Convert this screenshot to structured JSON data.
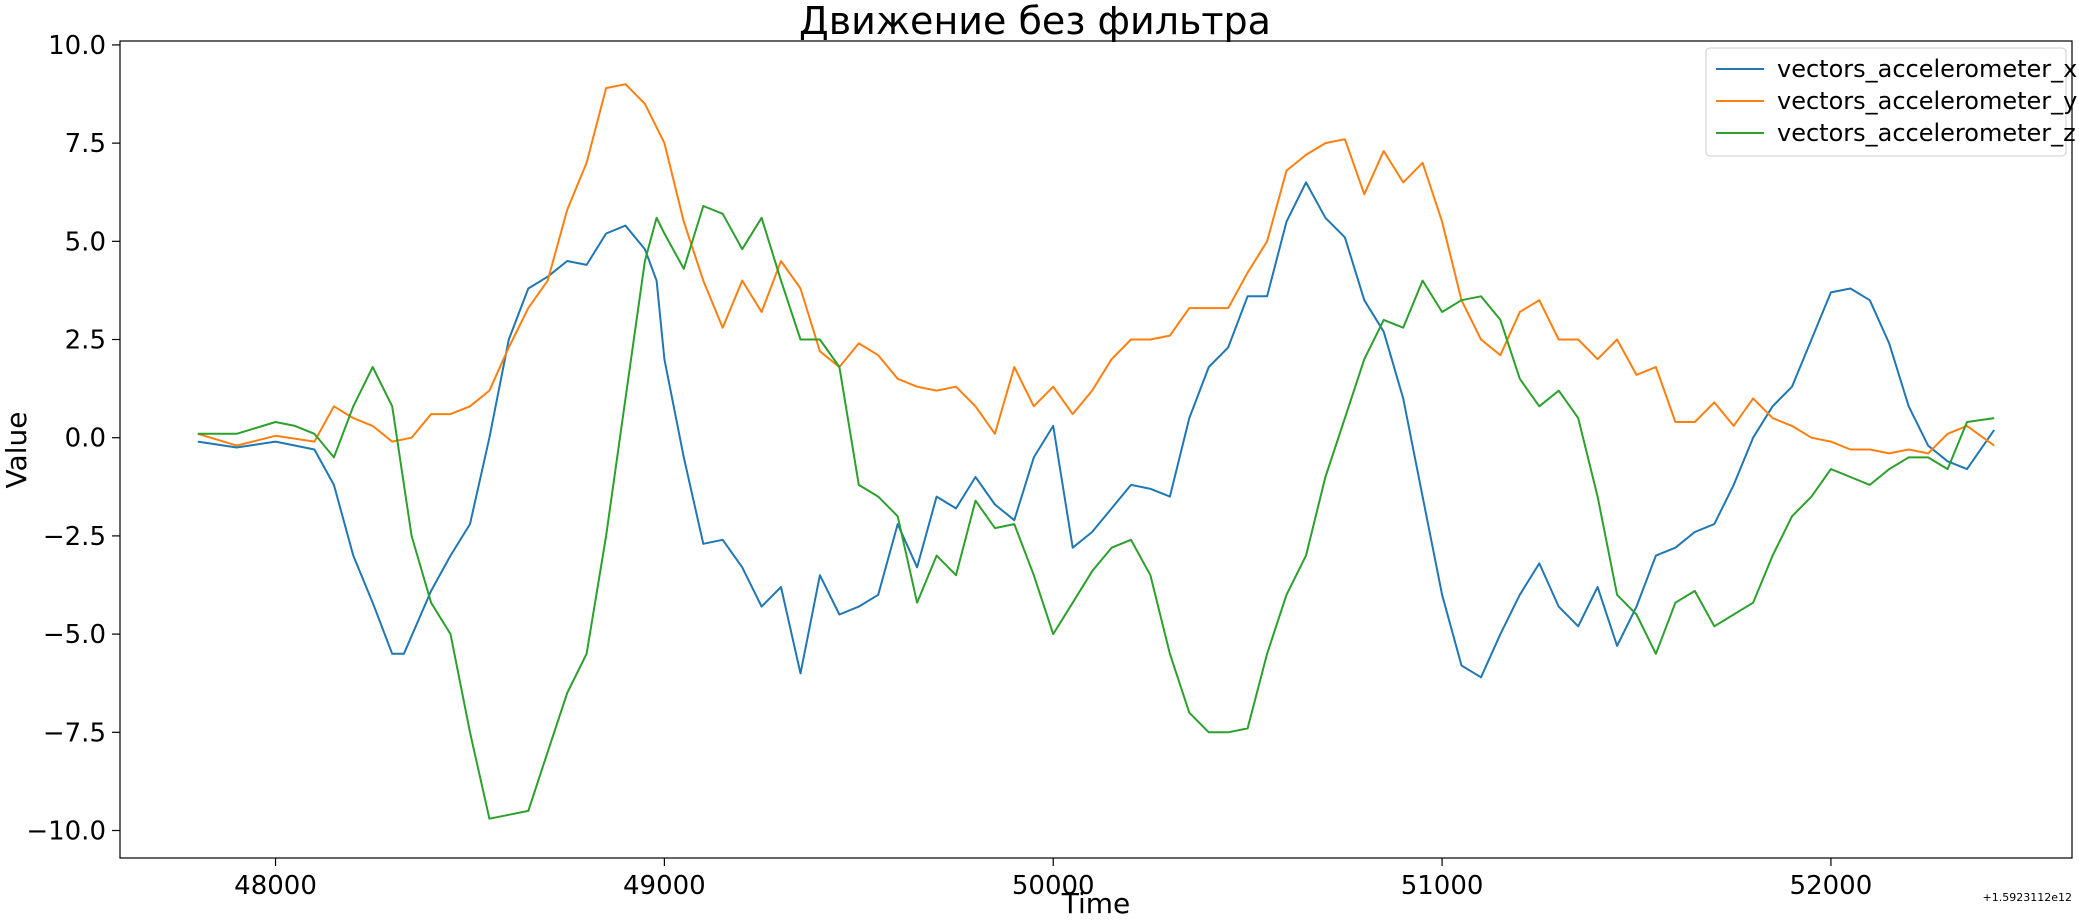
{
  "chart_data": {
    "type": "line",
    "title": "Движение без фильтра",
    "xlabel": "Time",
    "ylabel": "Value",
    "x_offset_label": "+1.5923112e12",
    "xlim": [
      47600,
      52620
    ],
    "ylim": [
      -10.7,
      10.1
    ],
    "xticks": [
      48000,
      49000,
      50000,
      51000,
      52000
    ],
    "yticks": [
      -10.0,
      -7.5,
      -5.0,
      -2.5,
      0.0,
      2.5,
      5.0,
      7.5,
      10.0
    ],
    "xtick_labels": [
      "48000",
      "49000",
      "50000",
      "51000",
      "52000"
    ],
    "ytick_labels": [
      "−10.0",
      "−7.5",
      "−5.0",
      "−2.5",
      "0.0",
      "2.5",
      "5.0",
      "7.5",
      "10.0"
    ],
    "grid": false,
    "legend_position": "top-right",
    "series": [
      {
        "name": "vectors_accelerometer_x",
        "color": "#1f77b4",
        "points": [
          [
            47800,
            -0.1
          ],
          [
            47900,
            -0.25
          ],
          [
            48000,
            -0.1
          ],
          [
            48100,
            -0.3
          ],
          [
            48150,
            -1.2
          ],
          [
            48200,
            -3.0
          ],
          [
            48250,
            -4.2
          ],
          [
            48300,
            -5.5
          ],
          [
            48330,
            -5.5
          ],
          [
            48400,
            -3.9
          ],
          [
            48450,
            -3.0
          ],
          [
            48500,
            -2.2
          ],
          [
            48550,
            0.0
          ],
          [
            48600,
            2.5
          ],
          [
            48650,
            3.8
          ],
          [
            48700,
            4.1
          ],
          [
            48750,
            4.5
          ],
          [
            48800,
            4.4
          ],
          [
            48850,
            5.2
          ],
          [
            48900,
            5.4
          ],
          [
            48950,
            4.8
          ],
          [
            48980,
            4.0
          ],
          [
            49000,
            2.0
          ],
          [
            49050,
            -0.5
          ],
          [
            49100,
            -2.7
          ],
          [
            49150,
            -2.6
          ],
          [
            49200,
            -3.3
          ],
          [
            49250,
            -4.3
          ],
          [
            49300,
            -3.8
          ],
          [
            49350,
            -6.0
          ],
          [
            49400,
            -3.5
          ],
          [
            49450,
            -4.5
          ],
          [
            49500,
            -4.3
          ],
          [
            49550,
            -4.0
          ],
          [
            49600,
            -2.2
          ],
          [
            49650,
            -3.3
          ],
          [
            49700,
            -1.5
          ],
          [
            49750,
            -1.8
          ],
          [
            49800,
            -1.0
          ],
          [
            49850,
            -1.7
          ],
          [
            49900,
            -2.1
          ],
          [
            49950,
            -0.5
          ],
          [
            50000,
            0.3
          ],
          [
            50050,
            -2.8
          ],
          [
            50100,
            -2.4
          ],
          [
            50150,
            -1.8
          ],
          [
            50200,
            -1.2
          ],
          [
            50250,
            -1.3
          ],
          [
            50300,
            -1.5
          ],
          [
            50350,
            0.5
          ],
          [
            50400,
            1.8
          ],
          [
            50450,
            2.3
          ],
          [
            50500,
            3.6
          ],
          [
            50550,
            3.6
          ],
          [
            50600,
            5.5
          ],
          [
            50650,
            6.5
          ],
          [
            50700,
            5.6
          ],
          [
            50750,
            5.1
          ],
          [
            50800,
            3.5
          ],
          [
            50850,
            2.7
          ],
          [
            50900,
            1.0
          ],
          [
            50950,
            -1.5
          ],
          [
            51000,
            -4.0
          ],
          [
            51050,
            -5.8
          ],
          [
            51100,
            -6.1
          ],
          [
            51150,
            -5.0
          ],
          [
            51200,
            -4.0
          ],
          [
            51250,
            -3.2
          ],
          [
            51300,
            -4.3
          ],
          [
            51350,
            -4.8
          ],
          [
            51400,
            -3.8
          ],
          [
            51450,
            -5.3
          ],
          [
            51500,
            -4.3
          ],
          [
            51550,
            -3.0
          ],
          [
            51600,
            -2.8
          ],
          [
            51650,
            -2.4
          ],
          [
            51700,
            -2.2
          ],
          [
            51750,
            -1.2
          ],
          [
            51800,
            0.0
          ],
          [
            51850,
            0.8
          ],
          [
            51900,
            1.3
          ],
          [
            51950,
            2.5
          ],
          [
            52000,
            3.7
          ],
          [
            52050,
            3.8
          ],
          [
            52100,
            3.5
          ],
          [
            52150,
            2.4
          ],
          [
            52200,
            0.8
          ],
          [
            52250,
            -0.2
          ],
          [
            52300,
            -0.6
          ],
          [
            52350,
            -0.8
          ],
          [
            52420,
            0.2
          ]
        ]
      },
      {
        "name": "vectors_accelerometer_y",
        "color": "#ff7f0e",
        "points": [
          [
            47800,
            0.1
          ],
          [
            47900,
            -0.2
          ],
          [
            48000,
            0.05
          ],
          [
            48100,
            -0.1
          ],
          [
            48150,
            0.8
          ],
          [
            48200,
            0.5
          ],
          [
            48250,
            0.3
          ],
          [
            48300,
            -0.1
          ],
          [
            48350,
            0.0
          ],
          [
            48400,
            0.6
          ],
          [
            48450,
            0.6
          ],
          [
            48500,
            0.8
          ],
          [
            48550,
            1.2
          ],
          [
            48600,
            2.3
          ],
          [
            48650,
            3.3
          ],
          [
            48700,
            4.0
          ],
          [
            48750,
            5.8
          ],
          [
            48800,
            7.0
          ],
          [
            48850,
            8.9
          ],
          [
            48900,
            9.0
          ],
          [
            48950,
            8.5
          ],
          [
            49000,
            7.5
          ],
          [
            49050,
            5.5
          ],
          [
            49100,
            4.0
          ],
          [
            49150,
            2.8
          ],
          [
            49200,
            4.0
          ],
          [
            49250,
            3.2
          ],
          [
            49300,
            4.5
          ],
          [
            49350,
            3.8
          ],
          [
            49400,
            2.2
          ],
          [
            49450,
            1.8
          ],
          [
            49500,
            2.4
          ],
          [
            49550,
            2.1
          ],
          [
            49600,
            1.5
          ],
          [
            49650,
            1.3
          ],
          [
            49700,
            1.2
          ],
          [
            49750,
            1.3
          ],
          [
            49800,
            0.8
          ],
          [
            49850,
            0.1
          ],
          [
            49900,
            1.8
          ],
          [
            49950,
            0.8
          ],
          [
            50000,
            1.3
          ],
          [
            50050,
            0.6
          ],
          [
            50100,
            1.2
          ],
          [
            50150,
            2.0
          ],
          [
            50200,
            2.5
          ],
          [
            50250,
            2.5
          ],
          [
            50300,
            2.6
          ],
          [
            50350,
            3.3
          ],
          [
            50400,
            3.3
          ],
          [
            50450,
            3.3
          ],
          [
            50500,
            4.2
          ],
          [
            50550,
            5.0
          ],
          [
            50600,
            6.8
          ],
          [
            50650,
            7.2
          ],
          [
            50700,
            7.5
          ],
          [
            50750,
            7.6
          ],
          [
            50800,
            6.2
          ],
          [
            50850,
            7.3
          ],
          [
            50900,
            6.5
          ],
          [
            50950,
            7.0
          ],
          [
            51000,
            5.5
          ],
          [
            51050,
            3.5
          ],
          [
            51100,
            2.5
          ],
          [
            51150,
            2.1
          ],
          [
            51200,
            3.2
          ],
          [
            51250,
            3.5
          ],
          [
            51300,
            2.5
          ],
          [
            51350,
            2.5
          ],
          [
            51400,
            2.0
          ],
          [
            51450,
            2.5
          ],
          [
            51500,
            1.6
          ],
          [
            51550,
            1.8
          ],
          [
            51600,
            0.4
          ],
          [
            51650,
            0.4
          ],
          [
            51700,
            0.9
          ],
          [
            51750,
            0.3
          ],
          [
            51800,
            1.0
          ],
          [
            51850,
            0.5
          ],
          [
            51900,
            0.3
          ],
          [
            51950,
            0.0
          ],
          [
            52000,
            -0.1
          ],
          [
            52050,
            -0.3
          ],
          [
            52100,
            -0.3
          ],
          [
            52150,
            -0.4
          ],
          [
            52200,
            -0.3
          ],
          [
            52250,
            -0.4
          ],
          [
            52300,
            0.1
          ],
          [
            52350,
            0.3
          ],
          [
            52420,
            -0.2
          ]
        ]
      },
      {
        "name": "vectors_accelerometer_z",
        "color": "#2ca02c",
        "points": [
          [
            47800,
            0.1
          ],
          [
            47900,
            0.1
          ],
          [
            48000,
            0.4
          ],
          [
            48050,
            0.3
          ],
          [
            48100,
            0.1
          ],
          [
            48150,
            -0.5
          ],
          [
            48200,
            0.8
          ],
          [
            48250,
            1.8
          ],
          [
            48300,
            0.8
          ],
          [
            48350,
            -2.5
          ],
          [
            48400,
            -4.2
          ],
          [
            48450,
            -5.0
          ],
          [
            48500,
            -7.5
          ],
          [
            48550,
            -9.7
          ],
          [
            48600,
            -9.6
          ],
          [
            48650,
            -9.5
          ],
          [
            48700,
            -8.0
          ],
          [
            48750,
            -6.5
          ],
          [
            48800,
            -5.5
          ],
          [
            48850,
            -2.5
          ],
          [
            48900,
            1.0
          ],
          [
            48950,
            4.5
          ],
          [
            48980,
            5.6
          ],
          [
            49000,
            5.2
          ],
          [
            49050,
            4.3
          ],
          [
            49100,
            5.9
          ],
          [
            49150,
            5.7
          ],
          [
            49200,
            4.8
          ],
          [
            49250,
            5.6
          ],
          [
            49300,
            4.0
          ],
          [
            49350,
            2.5
          ],
          [
            49400,
            2.5
          ],
          [
            49450,
            1.8
          ],
          [
            49500,
            -1.2
          ],
          [
            49550,
            -1.5
          ],
          [
            49600,
            -2.0
          ],
          [
            49650,
            -4.2
          ],
          [
            49700,
            -3.0
          ],
          [
            49750,
            -3.5
          ],
          [
            49800,
            -1.6
          ],
          [
            49850,
            -2.3
          ],
          [
            49900,
            -2.2
          ],
          [
            49950,
            -3.5
          ],
          [
            50000,
            -5.0
          ],
          [
            50050,
            -4.2
          ],
          [
            50100,
            -3.4
          ],
          [
            50150,
            -2.8
          ],
          [
            50200,
            -2.6
          ],
          [
            50250,
            -3.5
          ],
          [
            50300,
            -5.5
          ],
          [
            50350,
            -7.0
          ],
          [
            50400,
            -7.5
          ],
          [
            50450,
            -7.5
          ],
          [
            50500,
            -7.4
          ],
          [
            50550,
            -5.5
          ],
          [
            50600,
            -4.0
          ],
          [
            50650,
            -3.0
          ],
          [
            50700,
            -1.0
          ],
          [
            50750,
            0.5
          ],
          [
            50800,
            2.0
          ],
          [
            50850,
            3.0
          ],
          [
            50900,
            2.8
          ],
          [
            50950,
            4.0
          ],
          [
            51000,
            3.2
          ],
          [
            51050,
            3.5
          ],
          [
            51100,
            3.6
          ],
          [
            51150,
            3.0
          ],
          [
            51200,
            1.5
          ],
          [
            51250,
            0.8
          ],
          [
            51300,
            1.2
          ],
          [
            51350,
            0.5
          ],
          [
            51400,
            -1.5
          ],
          [
            51450,
            -4.0
          ],
          [
            51500,
            -4.5
          ],
          [
            51550,
            -5.5
          ],
          [
            51600,
            -4.2
          ],
          [
            51650,
            -3.9
          ],
          [
            51700,
            -4.8
          ],
          [
            51750,
            -4.5
          ],
          [
            51800,
            -4.2
          ],
          [
            51850,
            -3.0
          ],
          [
            51900,
            -2.0
          ],
          [
            51950,
            -1.5
          ],
          [
            52000,
            -0.8
          ],
          [
            52050,
            -1.0
          ],
          [
            52100,
            -1.2
          ],
          [
            52150,
            -0.8
          ],
          [
            52200,
            -0.5
          ],
          [
            52250,
            -0.5
          ],
          [
            52300,
            -0.8
          ],
          [
            52350,
            0.4
          ],
          [
            52420,
            0.5
          ]
        ]
      }
    ]
  }
}
